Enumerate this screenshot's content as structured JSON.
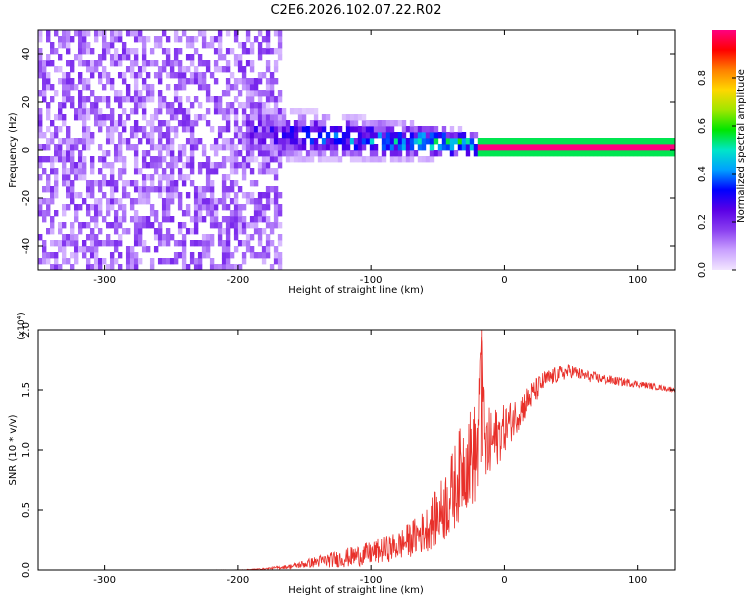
{
  "title": "C2E6.2026.102.07.22.R02",
  "chart_data": [
    {
      "type": "heatmap",
      "name": "spectrogram",
      "xlabel": "Height of straight line (km)",
      "ylabel": "Frequency (Hz)",
      "xlim": [
        -350,
        128
      ],
      "ylim": [
        -50,
        50
      ],
      "xticks": [
        -300,
        -200,
        -100,
        0,
        100
      ],
      "yticks": [
        -40,
        -20,
        0,
        20,
        40
      ],
      "colorbar": {
        "label": "Normalized spectral amplitude",
        "range": [
          0,
          1
        ],
        "ticks": [
          0.0,
          0.2,
          0.4,
          0.6,
          0.8
        ],
        "tick_labels": [
          "0.0",
          "0.2",
          "0.4",
          "0.6",
          "0.8"
        ],
        "colormap_stops": [
          "#f2e6ff",
          "#c9a0ff",
          "#8a3ff0",
          "#5a00e6",
          "#0000ff",
          "#00a0ff",
          "#00e6c8",
          "#00e600",
          "#a0e600",
          "#ffd700",
          "#ff8000",
          "#ff0000",
          "#ff0080"
        ]
      },
      "regions": [
        {
          "description": "noise",
          "x_range": [
            -350,
            -170
          ],
          "freq_range": [
            -50,
            50
          ],
          "amplitude": [
            0.05,
            0.2
          ]
        },
        {
          "description": "signal onset",
          "x_range": [
            -195,
            -20
          ],
          "center_freq": [
            6,
            1
          ],
          "halfwidth": [
            9,
            4
          ],
          "amplitude": [
            0.2,
            0.5
          ]
        },
        {
          "description": "carrier line",
          "x_range": [
            -20,
            128
          ],
          "freq": 0,
          "amplitude": 1.0
        }
      ]
    },
    {
      "type": "line",
      "name": "snr",
      "xlabel": "Height of straight line (km)",
      "ylabel": "SNR (10 * v/v)",
      "y_multiplier": "(x10⁴)",
      "xlim": [
        -350,
        128
      ],
      "ylim": [
        0.0,
        2.0
      ],
      "xticks": [
        -300,
        -200,
        -100,
        0,
        100
      ],
      "yticks": [
        0.0,
        0.5,
        1.0,
        1.5,
        2.0
      ],
      "ytick_labels": [
        "0.0",
        "0.5",
        "1.0",
        "1.5",
        "2.0"
      ],
      "series": [
        {
          "name": "SNR",
          "color": "#e8302a",
          "x": [
            -350,
            -300,
            -250,
            -200,
            -180,
            -160,
            -140,
            -120,
            -100,
            -80,
            -60,
            -50,
            -40,
            -30,
            -20,
            -17,
            -15,
            -10,
            0,
            10,
            20,
            30,
            40,
            50,
            60,
            80,
            100,
            128
          ],
          "y": [
            0.0,
            0.0,
            0.0,
            0.0,
            0.01,
            0.03,
            0.07,
            0.1,
            0.14,
            0.2,
            0.32,
            0.45,
            0.62,
            0.9,
            0.98,
            2.0,
            0.98,
            1.05,
            1.18,
            1.3,
            1.45,
            1.58,
            1.63,
            1.66,
            1.62,
            1.58,
            1.55,
            1.5
          ],
          "noise": [
            0.0,
            0.0,
            0.0,
            0.002,
            0.005,
            0.02,
            0.05,
            0.08,
            0.1,
            0.12,
            0.18,
            0.25,
            0.35,
            0.4,
            0.45,
            0.0,
            0.4,
            0.3,
            0.2,
            0.15,
            0.12,
            0.08,
            0.07,
            0.06,
            0.05,
            0.04,
            0.03,
            0.02
          ]
        }
      ]
    }
  ]
}
